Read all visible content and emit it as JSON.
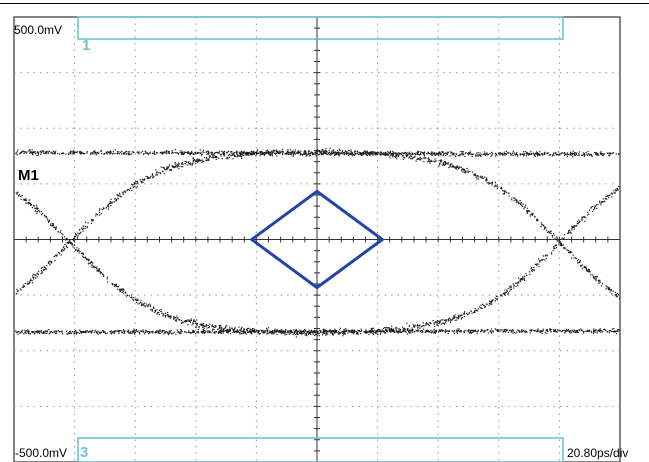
{
  "scale": {
    "top_voltage": "500.0mV",
    "bottom_voltage": "-500.0mV",
    "timebase": "20.80ps/div"
  },
  "mask": {
    "label": "M1",
    "regions": [
      "1",
      "3"
    ]
  },
  "colors": {
    "grid": "#999999",
    "axis": "#333333",
    "trace": "#1a1a1a",
    "mask_diamond": "#1e46a8",
    "mask_region": "#6fc3d3",
    "region_label": "#6fc3d3"
  },
  "chart_data": {
    "type": "scatter",
    "title": "",
    "xlabel": "",
    "ylabel": "",
    "x_unit": "ps",
    "y_unit": "mV",
    "divisions": {
      "x": 10,
      "y": 8
    },
    "xlim": [
      -104,
      104
    ],
    "ylim": [
      -500,
      500
    ],
    "grid": true,
    "eye": {
      "high_level_mV": 200,
      "low_level_mV": -210,
      "left_crossing_ps": -85,
      "right_crossing_ps": 83,
      "crossing_level_mV": 0
    },
    "mask_polygon": {
      "x": [
        -22.4,
        0,
        22.4,
        0
      ],
      "y": [
        0,
        108,
        0,
        -108
      ]
    }
  }
}
